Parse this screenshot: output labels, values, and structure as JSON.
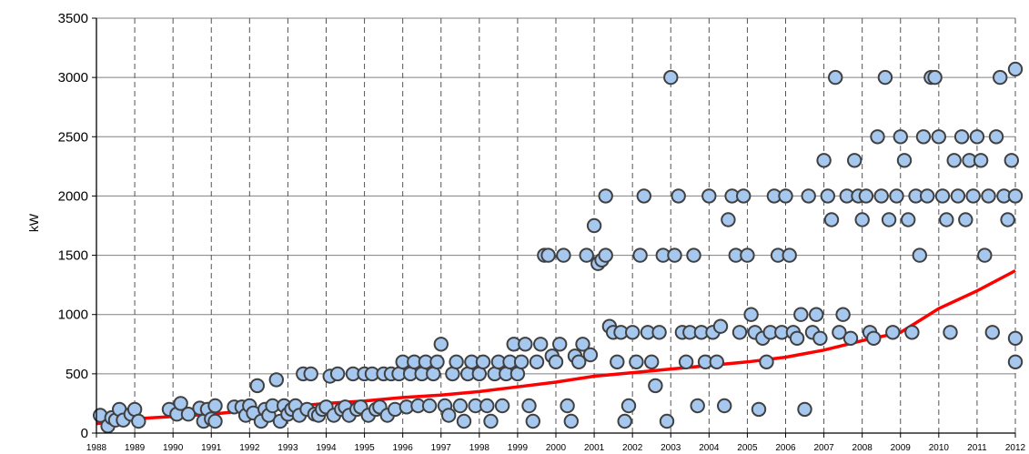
{
  "chart_data": {
    "type": "scatter",
    "title": "",
    "xlabel": "",
    "ylabel": "kW",
    "xlim": [
      1988,
      2012
    ],
    "ylim": [
      0,
      3500
    ],
    "y_ticks": [
      0,
      500,
      1000,
      1500,
      2000,
      2500,
      3000,
      3500
    ],
    "x_ticks": [
      1988,
      1989,
      1990,
      1991,
      1992,
      1993,
      1994,
      1995,
      1996,
      1997,
      1998,
      1999,
      2000,
      2001,
      2002,
      2003,
      2004,
      2005,
      2006,
      2007,
      2008,
      2009,
      2010,
      2011,
      2012
    ],
    "grid": {
      "x": "dashed",
      "y": "solid"
    },
    "colors": {
      "points_fill": "#a6c8ee",
      "points_stroke": "#404040",
      "trend": "#ff0000"
    },
    "series": [
      {
        "type": "scatter",
        "points": [
          [
            1988.1,
            150
          ],
          [
            1988.3,
            60
          ],
          [
            1988.4,
            130
          ],
          [
            1988.5,
            110
          ],
          [
            1988.6,
            200
          ],
          [
            1988.7,
            110
          ],
          [
            1988.9,
            160
          ],
          [
            1989.0,
            200
          ],
          [
            1989.1,
            100
          ],
          [
            1989.9,
            200
          ],
          [
            1990.1,
            160
          ],
          [
            1990.2,
            250
          ],
          [
            1990.4,
            160
          ],
          [
            1990.7,
            210
          ],
          [
            1990.8,
            100
          ],
          [
            1990.9,
            200
          ],
          [
            1991.0,
            120
          ],
          [
            1991.1,
            230
          ],
          [
            1991.1,
            100
          ],
          [
            1991.6,
            220
          ],
          [
            1991.8,
            220
          ],
          [
            1991.9,
            150
          ],
          [
            1992.0,
            230
          ],
          [
            1992.1,
            170
          ],
          [
            1992.2,
            400
          ],
          [
            1992.3,
            100
          ],
          [
            1992.4,
            200
          ],
          [
            1992.5,
            150
          ],
          [
            1992.6,
            230
          ],
          [
            1992.7,
            450
          ],
          [
            1992.8,
            100
          ],
          [
            1992.9,
            230
          ],
          [
            1993.0,
            160
          ],
          [
            1993.1,
            200
          ],
          [
            1993.2,
            230
          ],
          [
            1993.3,
            150
          ],
          [
            1993.4,
            500
          ],
          [
            1993.5,
            200
          ],
          [
            1993.6,
            500
          ],
          [
            1993.7,
            160
          ],
          [
            1993.8,
            150
          ],
          [
            1993.9,
            200
          ],
          [
            1994.0,
            220
          ],
          [
            1994.1,
            480
          ],
          [
            1994.2,
            150
          ],
          [
            1994.3,
            500
          ],
          [
            1994.4,
            200
          ],
          [
            1994.5,
            220
          ],
          [
            1994.6,
            150
          ],
          [
            1994.7,
            500
          ],
          [
            1994.8,
            200
          ],
          [
            1994.9,
            220
          ],
          [
            1995.0,
            500
          ],
          [
            1995.1,
            150
          ],
          [
            1995.2,
            500
          ],
          [
            1995.3,
            200
          ],
          [
            1995.4,
            220
          ],
          [
            1995.5,
            500
          ],
          [
            1995.6,
            150
          ],
          [
            1995.7,
            500
          ],
          [
            1995.8,
            200
          ],
          [
            1995.9,
            500
          ],
          [
            1996.0,
            600
          ],
          [
            1996.1,
            220
          ],
          [
            1996.2,
            500
          ],
          [
            1996.3,
            600
          ],
          [
            1996.4,
            230
          ],
          [
            1996.5,
            500
          ],
          [
            1996.6,
            600
          ],
          [
            1996.7,
            230
          ],
          [
            1996.8,
            500
          ],
          [
            1996.9,
            600
          ],
          [
            1997.0,
            750
          ],
          [
            1997.1,
            230
          ],
          [
            1997.2,
            150
          ],
          [
            1997.3,
            500
          ],
          [
            1997.4,
            600
          ],
          [
            1997.5,
            230
          ],
          [
            1997.6,
            100
          ],
          [
            1997.7,
            500
          ],
          [
            1997.8,
            600
          ],
          [
            1997.9,
            230
          ],
          [
            1998.0,
            500
          ],
          [
            1998.1,
            600
          ],
          [
            1998.2,
            230
          ],
          [
            1998.3,
            100
          ],
          [
            1998.4,
            500
          ],
          [
            1998.5,
            600
          ],
          [
            1998.6,
            230
          ],
          [
            1998.7,
            500
          ],
          [
            1998.8,
            600
          ],
          [
            1998.9,
            750
          ],
          [
            1999.0,
            500
          ],
          [
            1999.1,
            600
          ],
          [
            1999.2,
            750
          ],
          [
            1999.3,
            230
          ],
          [
            1999.4,
            100
          ],
          [
            1999.5,
            600
          ],
          [
            1999.6,
            750
          ],
          [
            1999.7,
            1500
          ],
          [
            1999.8,
            1500
          ],
          [
            1999.9,
            650
          ],
          [
            2000.0,
            600
          ],
          [
            2000.1,
            750
          ],
          [
            2000.2,
            1500
          ],
          [
            2000.3,
            230
          ],
          [
            2000.4,
            100
          ],
          [
            2000.5,
            650
          ],
          [
            2000.6,
            600
          ],
          [
            2000.7,
            750
          ],
          [
            2000.8,
            1500
          ],
          [
            2000.9,
            660
          ],
          [
            2001.0,
            1750
          ],
          [
            2001.1,
            1430
          ],
          [
            2001.2,
            1460
          ],
          [
            2001.3,
            2000
          ],
          [
            2001.3,
            1500
          ],
          [
            2001.4,
            900
          ],
          [
            2001.5,
            850
          ],
          [
            2001.6,
            600
          ],
          [
            2001.7,
            850
          ],
          [
            2001.8,
            100
          ],
          [
            2001.9,
            230
          ],
          [
            2002.0,
            850
          ],
          [
            2002.1,
            600
          ],
          [
            2002.2,
            1500
          ],
          [
            2002.3,
            2000
          ],
          [
            2002.4,
            850
          ],
          [
            2002.5,
            600
          ],
          [
            2002.6,
            400
          ],
          [
            2002.7,
            850
          ],
          [
            2002.8,
            1500
          ],
          [
            2002.9,
            100
          ],
          [
            2003.0,
            3000
          ],
          [
            2003.1,
            1500
          ],
          [
            2003.2,
            2000
          ],
          [
            2003.3,
            850
          ],
          [
            2003.4,
            600
          ],
          [
            2003.5,
            850
          ],
          [
            2003.6,
            1500
          ],
          [
            2003.7,
            230
          ],
          [
            2003.8,
            850
          ],
          [
            2003.9,
            600
          ],
          [
            2004.0,
            2000
          ],
          [
            2004.1,
            850
          ],
          [
            2004.2,
            600
          ],
          [
            2004.3,
            900
          ],
          [
            2004.4,
            230
          ],
          [
            2004.5,
            1800
          ],
          [
            2004.6,
            2000
          ],
          [
            2004.7,
            1500
          ],
          [
            2004.8,
            850
          ],
          [
            2004.9,
            2000
          ],
          [
            2005.0,
            1500
          ],
          [
            2005.1,
            1000
          ],
          [
            2005.2,
            850
          ],
          [
            2005.3,
            200
          ],
          [
            2005.4,
            800
          ],
          [
            2005.5,
            600
          ],
          [
            2005.6,
            850
          ],
          [
            2005.7,
            2000
          ],
          [
            2005.8,
            1500
          ],
          [
            2005.9,
            850
          ],
          [
            2006.0,
            2000
          ],
          [
            2006.1,
            1500
          ],
          [
            2006.2,
            850
          ],
          [
            2006.3,
            800
          ],
          [
            2006.4,
            1000
          ],
          [
            2006.5,
            200
          ],
          [
            2006.6,
            2000
          ],
          [
            2006.7,
            850
          ],
          [
            2006.8,
            1000
          ],
          [
            2006.9,
            800
          ],
          [
            2007.0,
            2300
          ],
          [
            2007.1,
            2000
          ],
          [
            2007.2,
            1800
          ],
          [
            2007.3,
            3000
          ],
          [
            2007.4,
            850
          ],
          [
            2007.5,
            1000
          ],
          [
            2007.6,
            2000
          ],
          [
            2007.7,
            800
          ],
          [
            2007.8,
            2300
          ],
          [
            2007.9,
            2000
          ],
          [
            2008.0,
            1800
          ],
          [
            2008.1,
            2000
          ],
          [
            2008.2,
            850
          ],
          [
            2008.3,
            800
          ],
          [
            2008.4,
            2500
          ],
          [
            2008.5,
            2000
          ],
          [
            2008.6,
            3000
          ],
          [
            2008.7,
            1800
          ],
          [
            2008.8,
            850
          ],
          [
            2008.9,
            2000
          ],
          [
            2009.0,
            2500
          ],
          [
            2009.1,
            2300
          ],
          [
            2009.2,
            1800
          ],
          [
            2009.3,
            850
          ],
          [
            2009.4,
            2000
          ],
          [
            2009.5,
            1500
          ],
          [
            2009.6,
            2500
          ],
          [
            2009.7,
            2000
          ],
          [
            2009.8,
            3000
          ],
          [
            2009.9,
            3000
          ],
          [
            2010.0,
            2500
          ],
          [
            2010.1,
            2000
          ],
          [
            2010.2,
            1800
          ],
          [
            2010.3,
            850
          ],
          [
            2010.4,
            2300
          ],
          [
            2010.5,
            2000
          ],
          [
            2010.6,
            2500
          ],
          [
            2010.7,
            1800
          ],
          [
            2010.8,
            2300
          ],
          [
            2010.9,
            2000
          ],
          [
            2011.0,
            2500
          ],
          [
            2011.1,
            2300
          ],
          [
            2011.2,
            1500
          ],
          [
            2011.3,
            2000
          ],
          [
            2011.4,
            850
          ],
          [
            2011.5,
            2500
          ],
          [
            2011.6,
            3000
          ],
          [
            2011.7,
            2000
          ],
          [
            2011.8,
            1800
          ],
          [
            2011.9,
            2300
          ],
          [
            2012.0,
            3070
          ],
          [
            2012.0,
            2000
          ],
          [
            2012.0,
            600
          ],
          [
            2012.0,
            800
          ]
        ]
      },
      {
        "type": "line",
        "points": [
          [
            1988,
            80
          ],
          [
            1989,
            120
          ],
          [
            1990,
            140
          ],
          [
            1991,
            160
          ],
          [
            1992,
            190
          ],
          [
            1993,
            220
          ],
          [
            1994,
            250
          ],
          [
            1995,
            270
          ],
          [
            1996,
            300
          ],
          [
            1997,
            320
          ],
          [
            1998,
            350
          ],
          [
            1999,
            390
          ],
          [
            2000,
            430
          ],
          [
            2001,
            480
          ],
          [
            2002,
            510
          ],
          [
            2003,
            540
          ],
          [
            2004,
            570
          ],
          [
            2005,
            600
          ],
          [
            2006,
            640
          ],
          [
            2007,
            700
          ],
          [
            2008,
            780
          ],
          [
            2009,
            850
          ],
          [
            2010,
            1050
          ],
          [
            2011,
            1200
          ],
          [
            2012,
            1370
          ]
        ]
      }
    ]
  }
}
